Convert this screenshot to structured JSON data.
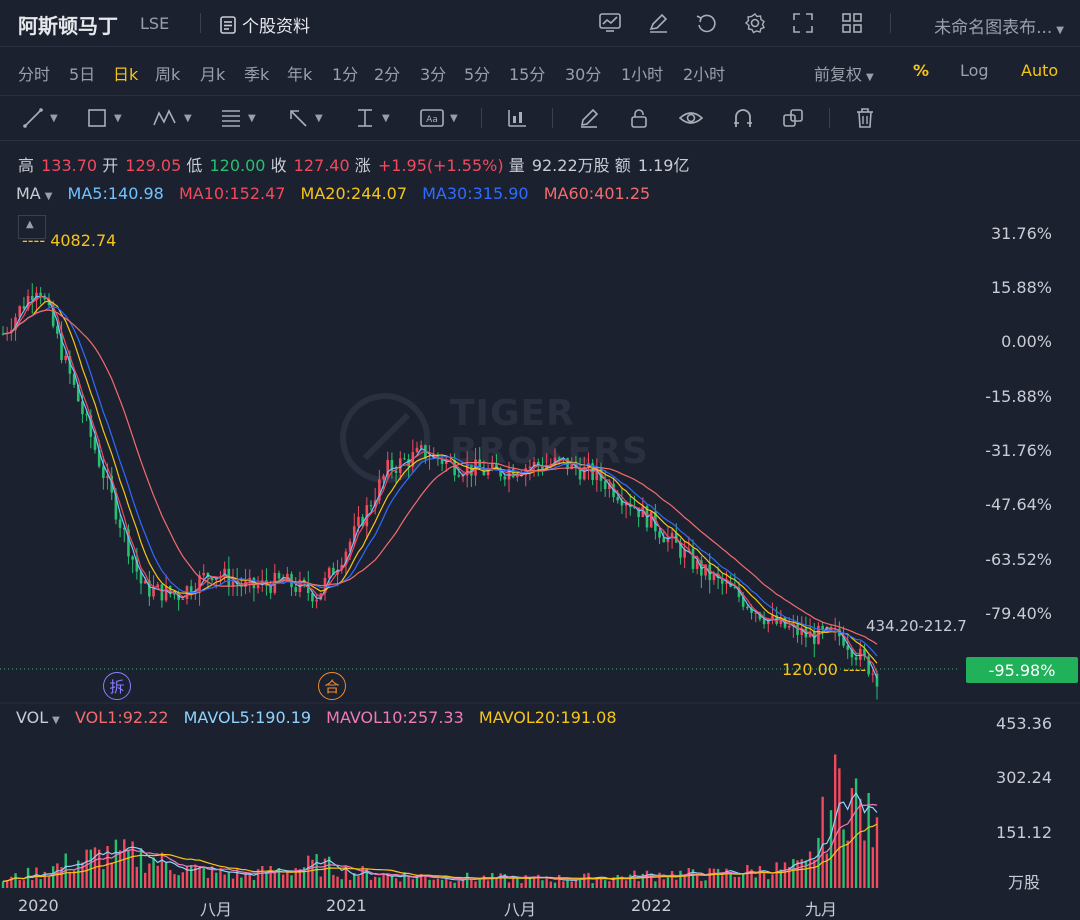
{
  "header": {
    "title": "阿斯顿马丁",
    "exchange": "LSE",
    "stock_info_label": "个股资料",
    "chart_name": "未命名图表布...",
    "icons": [
      "chart-icon",
      "edit-icon",
      "undo-icon",
      "gear-icon",
      "fullscreen-icon",
      "layout-grid-icon"
    ]
  },
  "periods": [
    {
      "label": "分时",
      "active": false
    },
    {
      "label": "5日",
      "active": false
    },
    {
      "label": "日k",
      "active": true
    },
    {
      "label": "周k",
      "active": false
    },
    {
      "label": "月k",
      "active": false
    },
    {
      "label": "季k",
      "active": false
    },
    {
      "label": "年k",
      "active": false
    },
    {
      "label": "1分",
      "active": false
    },
    {
      "label": "2分",
      "active": false
    },
    {
      "label": "3分",
      "active": false
    },
    {
      "label": "5分",
      "active": false
    },
    {
      "label": "15分",
      "active": false
    },
    {
      "label": "30分",
      "active": false
    },
    {
      "label": "1小时",
      "active": false
    },
    {
      "label": "2小时",
      "active": false
    }
  ],
  "adjust": {
    "label": "前复权",
    "percent_label": "%",
    "log_label": "Log",
    "auto_label": "Auto"
  },
  "tools": [
    "line-tool-icon",
    "rectangle-tool-icon",
    "pattern-tool-icon",
    "fib-tool-icon",
    "arrow-tool-icon",
    "measure-tool-icon",
    "text-tool-icon",
    "indicator-icon",
    "pencil-icon",
    "lock-icon",
    "eye-icon",
    "magnet-icon",
    "clone-icon",
    "trash-icon"
  ],
  "ohlc": {
    "high_label": "高",
    "high": "133.70",
    "open_label": "开",
    "open": "129.05",
    "low_label": "低",
    "low": "120.00",
    "close_label": "收",
    "close": "127.40",
    "change_label": "涨",
    "change": "+1.95(+1.55%)",
    "volume_label": "量",
    "volume": "92.22万股",
    "amount_label": "额",
    "amount": "1.19亿"
  },
  "ma_legend": {
    "title": "MA",
    "items": [
      {
        "label": "MA5:140.98",
        "color": "#6fc3ff"
      },
      {
        "label": "MA10:152.47",
        "color": "#f2495c"
      },
      {
        "label": "MA20:244.07",
        "color": "#f5c518"
      },
      {
        "label": "MA30:315.90",
        "color": "#2f6bff"
      },
      {
        "label": "MA60:401.25",
        "color": "#f36c6c"
      }
    ]
  },
  "vol_legend": {
    "title": "VOL",
    "items": [
      {
        "label": "VOL1:92.22",
        "color": "#f36c6c"
      },
      {
        "label": "MAVOL5:190.19",
        "color": "#8fd3ff"
      },
      {
        "label": "MAVOL10:257.33",
        "color": "#f07ab8"
      },
      {
        "label": "MAVOL20:191.08",
        "color": "#f5c518"
      }
    ]
  },
  "price_axis": [
    "31.76%",
    "15.88%",
    "0.00%",
    "-15.88%",
    "-31.76%",
    "-47.64%",
    "-63.52%",
    "-79.40%"
  ],
  "current_change": "-95.98%",
  "volume_axis": [
    "453.36",
    "302.24",
    "151.12"
  ],
  "volume_unit": "万股",
  "date_axis": [
    "2020",
    "八月",
    "2021",
    "八月",
    "2022",
    "九月"
  ],
  "annotations": {
    "high": "4082.74",
    "low": "120.00",
    "ma_range": "434.20-212.7",
    "split_event": "拆",
    "merge_event": "合"
  },
  "watermark": {
    "line1": "TIGER",
    "line2": "BROKERS"
  },
  "colors": {
    "up": "#f2495c",
    "down": "#26c06f",
    "accent": "#f5c518",
    "bg": "#1c2130"
  },
  "chart_data": {
    "type": "candlestick",
    "y_unit": "percent change",
    "ylim": [
      -100,
      40
    ],
    "volume_ylim": [
      0,
      500
    ],
    "x": [
      0,
      4,
      8,
      12,
      16,
      20,
      24,
      28,
      32,
      36,
      40,
      44,
      48,
      52,
      56,
      60,
      64,
      68,
      72,
      76,
      80,
      84,
      88,
      92,
      96,
      100
    ],
    "close_pct": [
      5,
      20,
      -10,
      -40,
      -70,
      -72,
      -65,
      -70,
      -68,
      -72,
      -55,
      -35,
      -30,
      -34,
      -36,
      -34,
      -33,
      -37,
      -45,
      -55,
      -65,
      -72,
      -80,
      -84,
      -84,
      -96
    ],
    "volume": [
      30,
      60,
      100,
      130,
      120,
      80,
      60,
      50,
      70,
      90,
      60,
      50,
      45,
      40,
      38,
      35,
      36,
      40,
      45,
      55,
      50,
      60,
      70,
      80,
      420,
      190
    ]
  }
}
